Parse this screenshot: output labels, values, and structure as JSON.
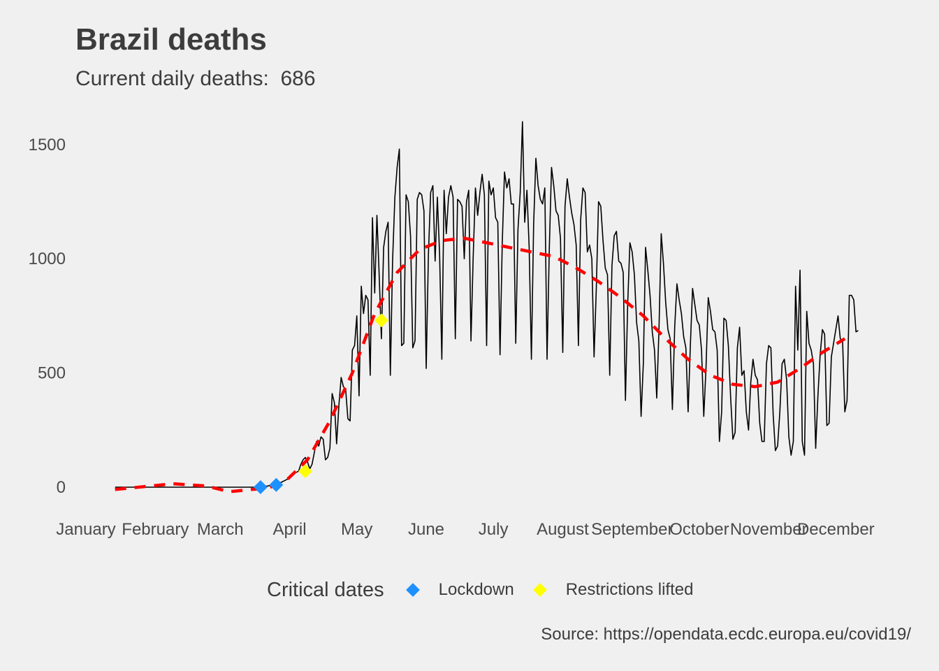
{
  "title": "Brazil deaths",
  "subtitle_label": "Current daily deaths:",
  "subtitle_value": "686",
  "caption": "Source: https://opendata.ecdc.europa.eu/covid19/",
  "legend": {
    "title": "Critical dates",
    "items": [
      {
        "label": "Lockdown",
        "color": "#1e90ff"
      },
      {
        "label": "Restrictions lifted",
        "color": "#ffff00"
      }
    ]
  },
  "chart_data": {
    "type": "line",
    "x_axis": "date (day of year 2020)",
    "ylim": [
      -50,
      1600
    ],
    "y_ticks": [
      0,
      500,
      1000,
      1500
    ],
    "x_ticks": [
      {
        "label": "January",
        "day": 1
      },
      {
        "label": "February",
        "day": 32
      },
      {
        "label": "March",
        "day": 61
      },
      {
        "label": "April",
        "day": 92
      },
      {
        "label": "May",
        "day": 122
      },
      {
        "label": "June",
        "day": 153
      },
      {
        "label": "July",
        "day": 183
      },
      {
        "label": "August",
        "day": 214
      },
      {
        "label": "September",
        "day": 245
      },
      {
        "label": "October",
        "day": 275
      },
      {
        "label": "November",
        "day": 306
      },
      {
        "label": "December",
        "day": 336
      }
    ],
    "series": [
      {
        "line_color": "#000000",
        "values_by_day": [
          [
            14,
            0
          ],
          [
            78,
            0
          ],
          [
            79,
            1
          ],
          [
            82,
            5
          ],
          [
            85,
            10
          ],
          [
            88,
            20
          ],
          [
            90,
            30
          ],
          [
            92,
            40
          ],
          [
            94,
            60
          ],
          [
            96,
            70
          ],
          [
            97,
            100
          ],
          [
            98,
            120
          ],
          [
            99,
            130
          ],
          [
            100,
            110
          ],
          [
            101,
            80
          ],
          [
            102,
            100
          ],
          [
            103,
            150
          ],
          [
            104,
            200
          ],
          [
            105,
            180
          ],
          [
            106,
            220
          ],
          [
            107,
            210
          ],
          [
            108,
            120
          ],
          [
            109,
            130
          ],
          [
            110,
            170
          ],
          [
            111,
            410
          ],
          [
            112,
            370
          ],
          [
            113,
            190
          ],
          [
            114,
            360
          ],
          [
            115,
            480
          ],
          [
            116,
            440
          ],
          [
            117,
            430
          ],
          [
            118,
            300
          ],
          [
            119,
            290
          ],
          [
            120,
            600
          ],
          [
            121,
            620
          ],
          [
            122,
            750
          ],
          [
            123,
            400
          ],
          [
            124,
            880
          ],
          [
            125,
            760
          ],
          [
            126,
            840
          ],
          [
            127,
            820
          ],
          [
            128,
            490
          ],
          [
            129,
            1180
          ],
          [
            130,
            850
          ],
          [
            131,
            1190
          ],
          [
            132,
            930
          ],
          [
            133,
            650
          ],
          [
            134,
            1050
          ],
          [
            135,
            1120
          ],
          [
            136,
            1160
          ],
          [
            137,
            490
          ],
          [
            138,
            990
          ],
          [
            139,
            1270
          ],
          [
            140,
            1400
          ],
          [
            141,
            1480
          ],
          [
            142,
            620
          ],
          [
            143,
            630
          ],
          [
            144,
            1280
          ],
          [
            145,
            1250
          ],
          [
            146,
            1100
          ],
          [
            147,
            610
          ],
          [
            148,
            640
          ],
          [
            149,
            1260
          ],
          [
            150,
            1290
          ],
          [
            151,
            1280
          ],
          [
            152,
            1210
          ],
          [
            153,
            520
          ],
          [
            154,
            1020
          ],
          [
            155,
            1290
          ],
          [
            156,
            1320
          ],
          [
            157,
            990
          ],
          [
            158,
            1270
          ],
          [
            159,
            1020
          ],
          [
            160,
            560
          ],
          [
            161,
            1300
          ],
          [
            162,
            1110
          ],
          [
            163,
            1270
          ],
          [
            164,
            1320
          ],
          [
            165,
            1270
          ],
          [
            166,
            650
          ],
          [
            167,
            1260
          ],
          [
            168,
            1250
          ],
          [
            169,
            1230
          ],
          [
            170,
            1000
          ],
          [
            171,
            1250
          ],
          [
            172,
            1300
          ],
          [
            173,
            640
          ],
          [
            174,
            1010
          ],
          [
            175,
            1310
          ],
          [
            176,
            1190
          ],
          [
            177,
            1290
          ],
          [
            178,
            1370
          ],
          [
            179,
            1280
          ],
          [
            180,
            620
          ],
          [
            181,
            1340
          ],
          [
            182,
            1280
          ],
          [
            183,
            1310
          ],
          [
            184,
            1180
          ],
          [
            185,
            1160
          ],
          [
            186,
            580
          ],
          [
            187,
            1070
          ],
          [
            188,
            1380
          ],
          [
            189,
            1310
          ],
          [
            190,
            1350
          ],
          [
            191,
            1240
          ],
          [
            192,
            1240
          ],
          [
            193,
            630
          ],
          [
            194,
            1130
          ],
          [
            195,
            1290
          ],
          [
            196,
            1600
          ],
          [
            197,
            1160
          ],
          [
            198,
            1300
          ],
          [
            199,
            1050
          ],
          [
            200,
            560
          ],
          [
            201,
            1150
          ],
          [
            202,
            1440
          ],
          [
            203,
            1320
          ],
          [
            204,
            1260
          ],
          [
            205,
            1240
          ],
          [
            206,
            1310
          ],
          [
            207,
            560
          ],
          [
            208,
            1040
          ],
          [
            209,
            1400
          ],
          [
            210,
            1320
          ],
          [
            211,
            1210
          ],
          [
            212,
            1190
          ],
          [
            213,
            1090
          ],
          [
            214,
            590
          ],
          [
            215,
            1230
          ],
          [
            216,
            1350
          ],
          [
            217,
            1270
          ],
          [
            218,
            1200
          ],
          [
            219,
            1150
          ],
          [
            220,
            1060
          ],
          [
            221,
            620
          ],
          [
            222,
            1170
          ],
          [
            223,
            1310
          ],
          [
            224,
            1290
          ],
          [
            225,
            1030
          ],
          [
            226,
            1060
          ],
          [
            227,
            1000
          ],
          [
            228,
            570
          ],
          [
            229,
            870
          ],
          [
            230,
            1250
          ],
          [
            231,
            1230
          ],
          [
            232,
            1080
          ],
          [
            233,
            960
          ],
          [
            234,
            930
          ],
          [
            235,
            490
          ],
          [
            236,
            970
          ],
          [
            237,
            1100
          ],
          [
            238,
            1120
          ],
          [
            239,
            990
          ],
          [
            240,
            980
          ],
          [
            241,
            940
          ],
          [
            242,
            380
          ],
          [
            243,
            800
          ],
          [
            244,
            1070
          ],
          [
            245,
            1030
          ],
          [
            246,
            930
          ],
          [
            247,
            720
          ],
          [
            248,
            640
          ],
          [
            249,
            310
          ],
          [
            250,
            540
          ],
          [
            251,
            1050
          ],
          [
            252,
            950
          ],
          [
            253,
            840
          ],
          [
            254,
            680
          ],
          [
            255,
            600
          ],
          [
            256,
            390
          ],
          [
            257,
            690
          ],
          [
            258,
            1110
          ],
          [
            259,
            980
          ],
          [
            260,
            810
          ],
          [
            261,
            690
          ],
          [
            262,
            650
          ],
          [
            263,
            340
          ],
          [
            264,
            700
          ],
          [
            265,
            890
          ],
          [
            266,
            820
          ],
          [
            267,
            760
          ],
          [
            268,
            660
          ],
          [
            269,
            610
          ],
          [
            270,
            330
          ],
          [
            271,
            620
          ],
          [
            272,
            870
          ],
          [
            273,
            800
          ],
          [
            274,
            730
          ],
          [
            275,
            710
          ],
          [
            276,
            600
          ],
          [
            277,
            310
          ],
          [
            278,
            520
          ],
          [
            279,
            830
          ],
          [
            280,
            770
          ],
          [
            281,
            690
          ],
          [
            282,
            680
          ],
          [
            283,
            600
          ],
          [
            284,
            200
          ],
          [
            285,
            330
          ],
          [
            286,
            740
          ],
          [
            287,
            730
          ],
          [
            288,
            620
          ],
          [
            289,
            390
          ],
          [
            290,
            210
          ],
          [
            291,
            240
          ],
          [
            292,
            610
          ],
          [
            293,
            700
          ],
          [
            294,
            490
          ],
          [
            295,
            510
          ],
          [
            296,
            330
          ],
          [
            297,
            250
          ],
          [
            298,
            460
          ],
          [
            299,
            560
          ],
          [
            300,
            490
          ],
          [
            301,
            470
          ],
          [
            302,
            280
          ],
          [
            303,
            200
          ],
          [
            304,
            200
          ],
          [
            305,
            540
          ],
          [
            306,
            620
          ],
          [
            307,
            610
          ],
          [
            308,
            320
          ],
          [
            309,
            160
          ],
          [
            310,
            180
          ],
          [
            311,
            330
          ],
          [
            312,
            540
          ],
          [
            313,
            560
          ],
          [
            314,
            470
          ],
          [
            315,
            220
          ],
          [
            316,
            140
          ],
          [
            317,
            200
          ],
          [
            318,
            880
          ],
          [
            319,
            600
          ],
          [
            320,
            950
          ],
          [
            321,
            200
          ],
          [
            322,
            140
          ],
          [
            323,
            770
          ],
          [
            324,
            630
          ],
          [
            325,
            600
          ],
          [
            326,
            540
          ],
          [
            327,
            170
          ],
          [
            328,
            400
          ],
          [
            329,
            580
          ],
          [
            330,
            690
          ],
          [
            331,
            670
          ],
          [
            332,
            270
          ],
          [
            333,
            280
          ],
          [
            334,
            570
          ],
          [
            335,
            630
          ],
          [
            336,
            690
          ],
          [
            337,
            750
          ],
          [
            338,
            650
          ],
          [
            339,
            640
          ],
          [
            340,
            330
          ],
          [
            341,
            380
          ],
          [
            342,
            840
          ],
          [
            343,
            840
          ],
          [
            344,
            820
          ],
          [
            345,
            680
          ],
          [
            346,
            686
          ]
        ]
      },
      {
        "line_color": "#ff0000",
        "line_style": "dashed",
        "values_by_day": [
          [
            14,
            -10
          ],
          [
            40,
            15
          ],
          [
            55,
            5
          ],
          [
            65,
            -20
          ],
          [
            75,
            -10
          ],
          [
            82,
            -5
          ],
          [
            90,
            25
          ],
          [
            100,
            120
          ],
          [
            110,
            290
          ],
          [
            120,
            500
          ],
          [
            130,
            760
          ],
          [
            140,
            940
          ],
          [
            150,
            1040
          ],
          [
            160,
            1080
          ],
          [
            170,
            1090
          ],
          [
            180,
            1070
          ],
          [
            190,
            1050
          ],
          [
            200,
            1030
          ],
          [
            210,
            1010
          ],
          [
            220,
            960
          ],
          [
            230,
            900
          ],
          [
            240,
            830
          ],
          [
            250,
            750
          ],
          [
            260,
            650
          ],
          [
            270,
            560
          ],
          [
            280,
            490
          ],
          [
            290,
            450
          ],
          [
            300,
            440
          ],
          [
            310,
            460
          ],
          [
            320,
            520
          ],
          [
            330,
            590
          ],
          [
            340,
            650
          ]
        ]
      }
    ],
    "critical_dates": [
      {
        "type": "Lockdown",
        "day": 79,
        "value": 0
      },
      {
        "type": "Lockdown",
        "day": 86,
        "value": 10
      },
      {
        "type": "Restrictions lifted",
        "day": 99,
        "value": 70
      },
      {
        "type": "Restrictions lifted",
        "day": 133,
        "value": 730
      }
    ]
  }
}
